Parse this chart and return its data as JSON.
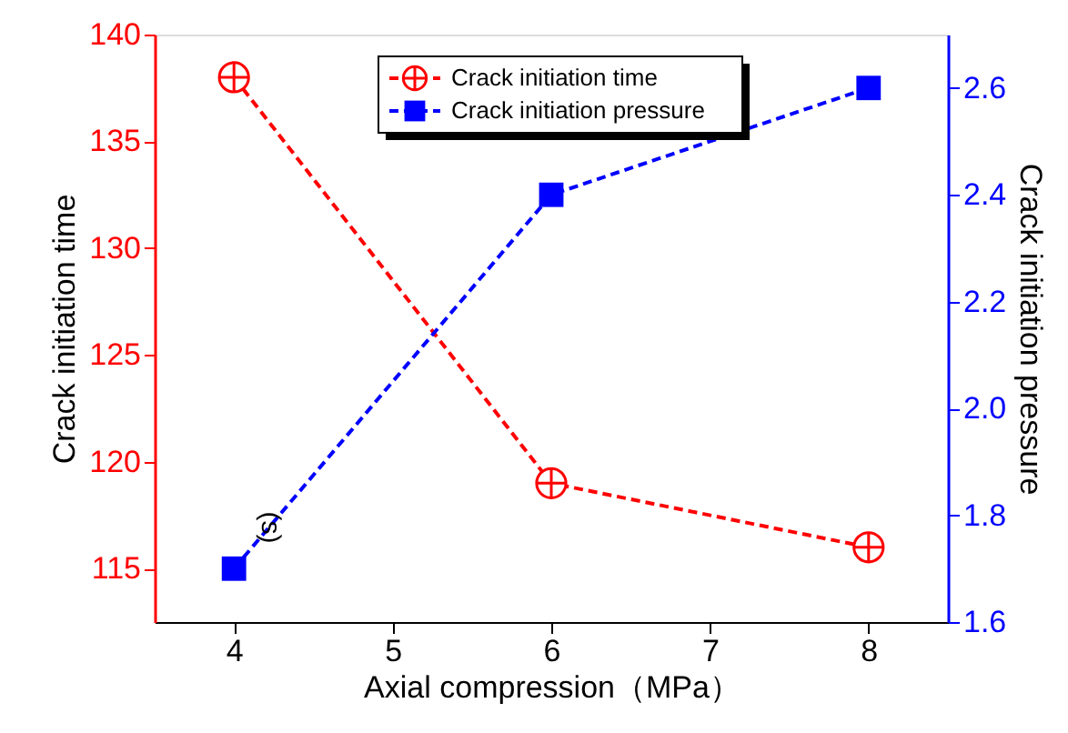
{
  "chart_data": {
    "type": "line",
    "x": [
      4,
      6,
      8
    ],
    "xlabel": "Axial compression（MPa）",
    "ylabel": "Crack initiation time",
    "y2label": "Crack initiation pressure",
    "xlim": [
      3.5,
      8.5
    ],
    "xticks": [
      4,
      5,
      6,
      7,
      8
    ],
    "ylim": [
      112.5,
      140
    ],
    "yticks": [
      115,
      120,
      125,
      130,
      135,
      140
    ],
    "y2lim": [
      1.6,
      2.7
    ],
    "y2ticks": [
      1.6,
      1.8,
      {
        "value": 2.0,
        "label": "2.0"
      },
      2.2,
      2.4,
      2.6
    ],
    "series": [
      {
        "name": "Crack initiation time",
        "color": "#ff0000",
        "values": [
          138,
          119,
          116
        ],
        "marker": "cross",
        "line_style": "dashed"
      },
      {
        "name": "Crack initiation pressure",
        "color": "#0000ff",
        "values": [
          1.7,
          2.4,
          2.6
        ],
        "marker": "square",
        "line_style": "dashed",
        "axis": "y2"
      }
    ],
    "annotations": [
      "(s)"
    ],
    "legend": "top",
    "grid": false
  }
}
